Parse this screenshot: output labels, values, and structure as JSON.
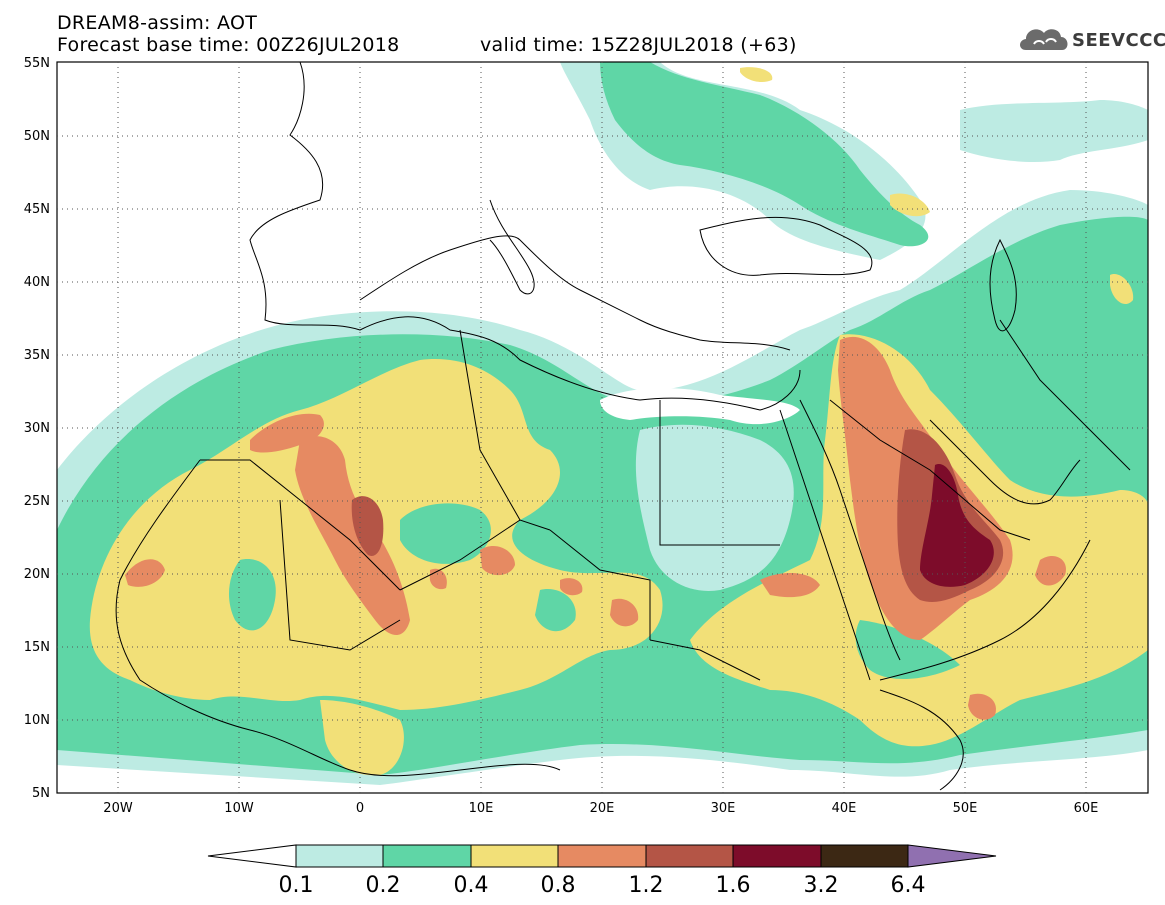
{
  "header": {
    "title": "DREAM8-assim: AOT",
    "base_time": "Forecast base time: 00Z26JUL2018",
    "valid_time": "valid time: 15Z28JUL2018 (+63)"
  },
  "logo": {
    "text": "SEEVCCC",
    "icon": "cloud-icon"
  },
  "map": {
    "lat_labels": [
      "55N",
      "50N",
      "45N",
      "40N",
      "35N",
      "30N",
      "25N",
      "20N",
      "15N",
      "10N",
      "5N"
    ],
    "lon_labels": [
      "20W",
      "10W",
      "0",
      "10E",
      "20E",
      "30E",
      "40E",
      "50E",
      "60E"
    ],
    "lat_range": [
      5,
      55
    ],
    "lon_range": [
      -25,
      65
    ],
    "grid": "dotted"
  },
  "colorbar": {
    "labels": [
      "0.1",
      "0.2",
      "0.4",
      "0.8",
      "1.2",
      "1.6",
      "3.2",
      "6.4"
    ],
    "colors": [
      "#ffffff",
      "#bdebe3",
      "#5fd6a6",
      "#f2e078",
      "#e68a62",
      "#b45546",
      "#7d0c2a",
      "#3c2814",
      "#9070b0"
    ]
  }
}
